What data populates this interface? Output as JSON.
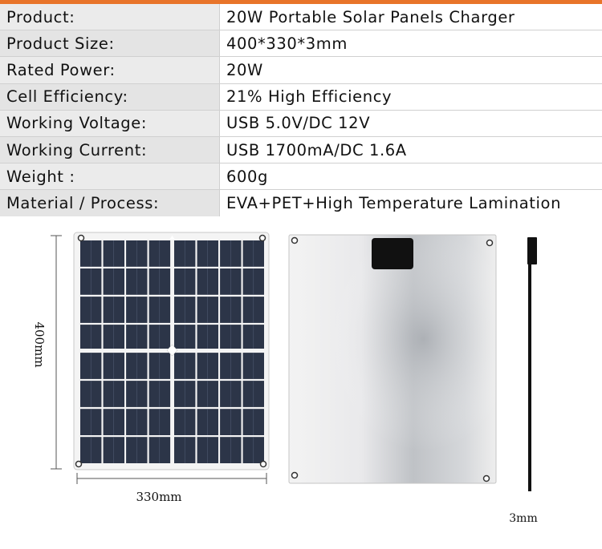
{
  "specs": [
    {
      "label": "Product:",
      "value": "20W Portable Solar Panels Charger"
    },
    {
      "label": "Product Size:",
      "value": "400*330*3mm"
    },
    {
      "label": "Rated Power:",
      "value": "20W"
    },
    {
      "label": "Cell Efficiency:",
      "value": "21% High Efficiency"
    },
    {
      "label": "Working Voltage:",
      "value": "USB 5.0V/DC 12V"
    },
    {
      "label": "Working Current:",
      "value": "USB 1700mA/DC 1.6A"
    },
    {
      "label": "Weight :",
      "value": "600g"
    },
    {
      "label": "Material / Process:",
      "value": "EVA+PET+High Temperature Lamination"
    }
  ],
  "dimensions": {
    "height_label": "400mm",
    "width_label": "330mm",
    "thickness_label": "3mm"
  },
  "colors": {
    "accent": "#e8742a",
    "cell": "#2c3548",
    "frame": "#f4f4f4"
  }
}
